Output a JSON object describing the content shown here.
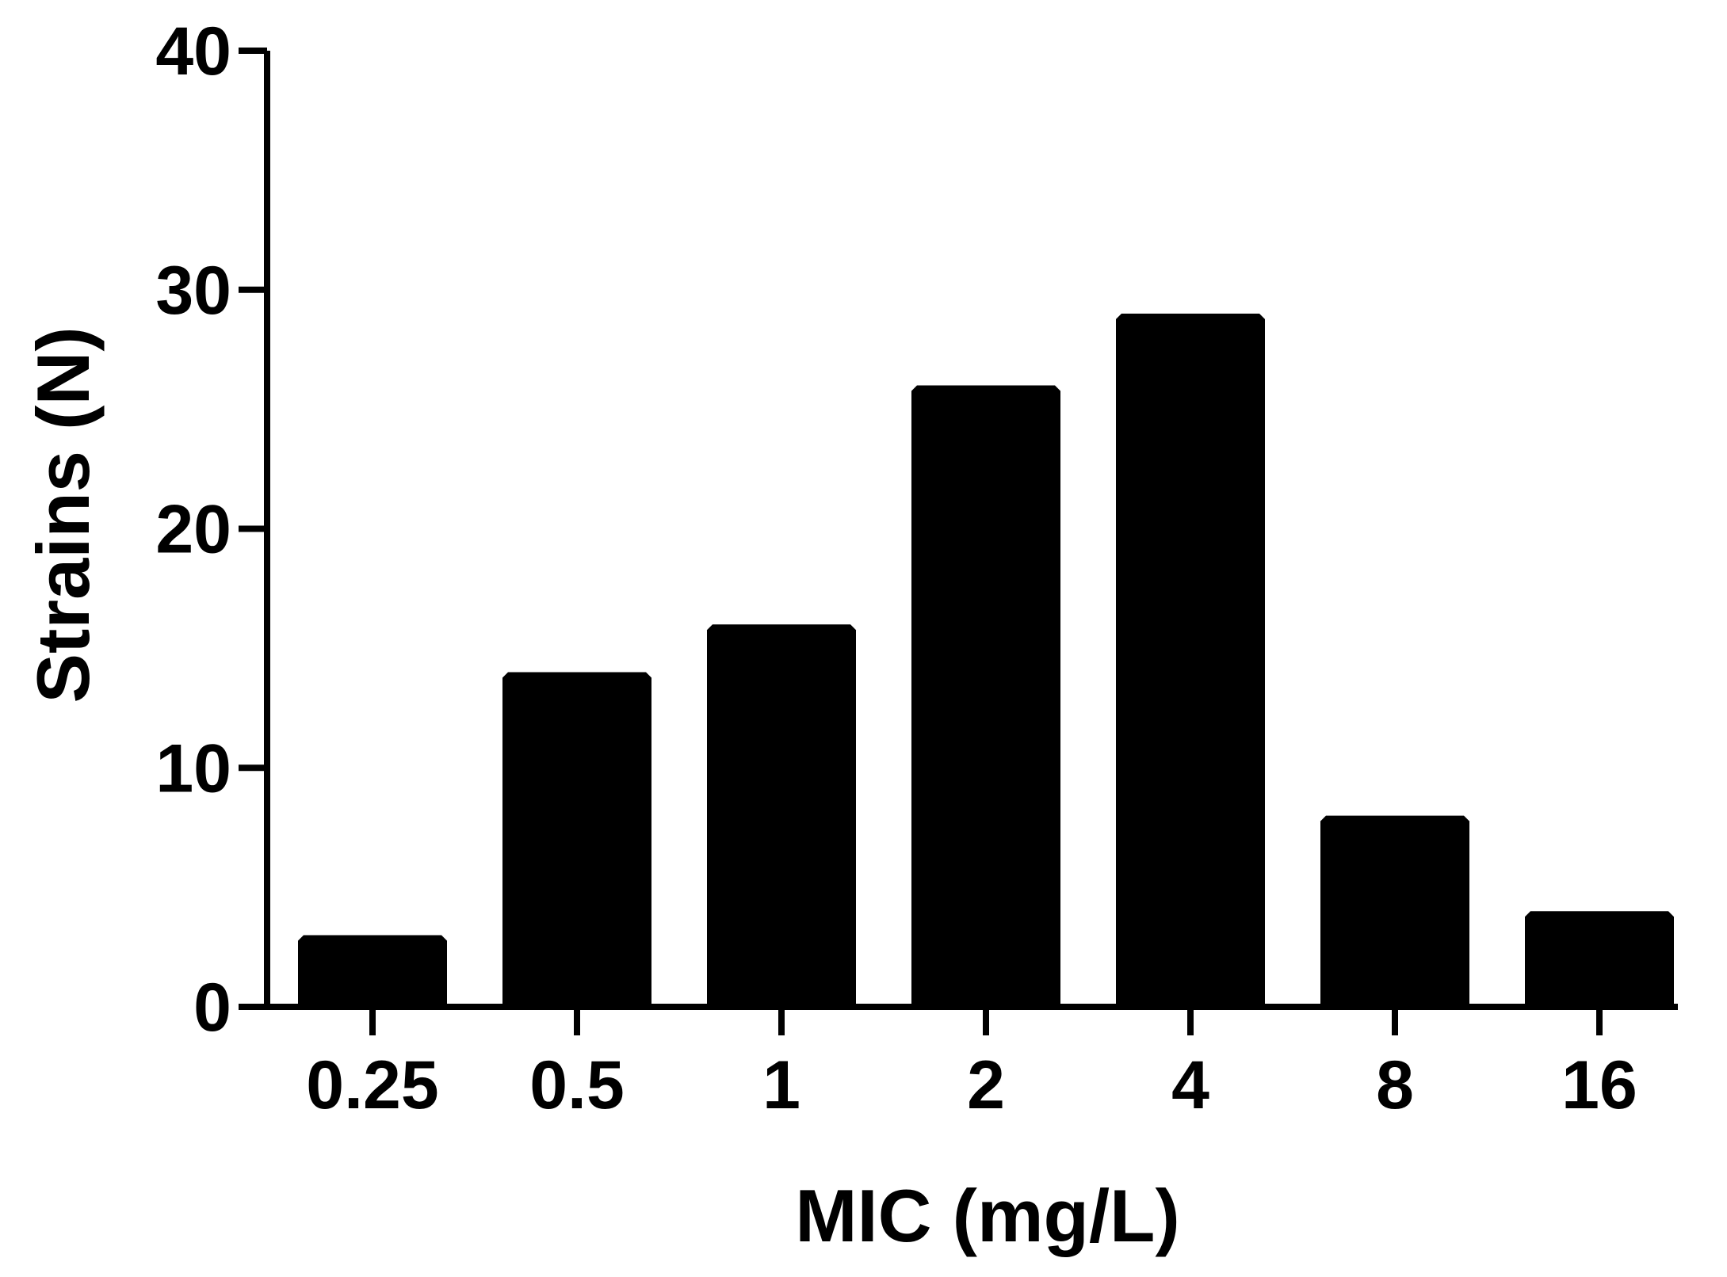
{
  "chart_data": {
    "type": "bar",
    "title": "",
    "xlabel": "MIC (mg/L)",
    "ylabel": "Strains (N)",
    "categories": [
      "0.25",
      "0.5",
      "1",
      "2",
      "4",
      "8",
      "16"
    ],
    "values": [
      3,
      14,
      16,
      26,
      29,
      8,
      4
    ],
    "ylim": [
      0,
      40
    ],
    "yticks": [
      0,
      10,
      20,
      30,
      40
    ],
    "grid": false,
    "legend": "none",
    "bar_color": "#000000"
  }
}
